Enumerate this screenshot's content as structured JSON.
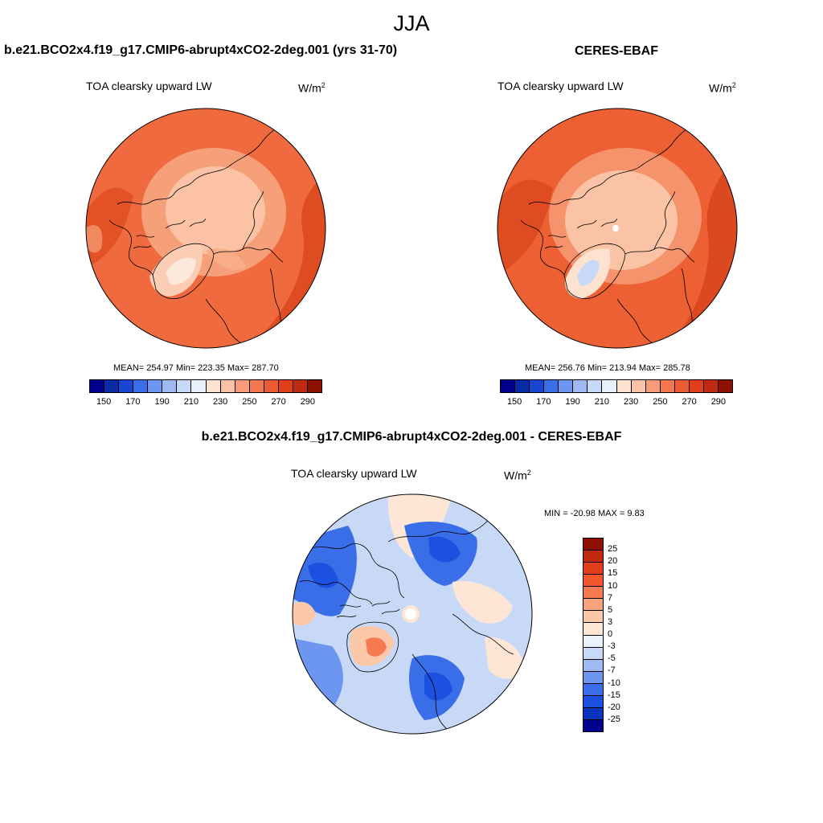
{
  "season": "JJA",
  "panels": [
    {
      "title": "b.e21.BCO2x4.f19_g17.CMIP6-abrupt4xCO2-2deg.001 (yrs 31-70)",
      "variable": "TOA clearsky upward LW",
      "units_base": "W/m",
      "units_exp": "2",
      "stats": "MEAN= 254.97  Min= 223.35  Max= 287.70",
      "colorbar": {
        "colors": [
          "#00008c",
          "#0a2ba8",
          "#1846d0",
          "#3a6ee8",
          "#6d96f0",
          "#9fbaf3",
          "#c8d9f7",
          "#e8f0fb",
          "#fde2d0",
          "#fbc3a6",
          "#f79b7a",
          "#f3784f",
          "#ee5a32",
          "#e13f1c",
          "#bf2a10",
          "#8d1002"
        ],
        "tick_labels": [
          "150",
          "170",
          "190",
          "210",
          "230",
          "250",
          "270",
          "290"
        ]
      }
    },
    {
      "title": "CERES-EBAF",
      "variable": "TOA clearsky upward LW",
      "units_base": "W/m",
      "units_exp": "2",
      "stats": "MEAN= 256.76  Min= 213.94  Max= 285.78",
      "colorbar": {
        "colors": [
          "#00008c",
          "#0a2ba8",
          "#1846d0",
          "#3a6ee8",
          "#6d96f0",
          "#9fbaf3",
          "#c8d9f7",
          "#e8f0fb",
          "#fde2d0",
          "#fbc3a6",
          "#f79b7a",
          "#f3784f",
          "#ee5a32",
          "#e13f1c",
          "#bf2a10",
          "#8d1002"
        ],
        "tick_labels": [
          "150",
          "170",
          "190",
          "210",
          "230",
          "250",
          "270",
          "290"
        ]
      }
    },
    {
      "title": "b.e21.BCO2x4.f19_g17.CMIP6-abrupt4xCO2-2deg.001 - CERES-EBAF",
      "variable": "TOA clearsky upward LW",
      "units_base": "W/m",
      "units_exp": "2",
      "stats": "MIN = -20.98 MAX =   9.83",
      "colorbar": {
        "colors": [
          "#8d1002",
          "#bf2a10",
          "#e13f1c",
          "#f3572c",
          "#f57a52",
          "#f8a27e",
          "#fbc8aa",
          "#fde6d6",
          "#eaf2fb",
          "#c8d9f7",
          "#9fbaf3",
          "#6d96f0",
          "#3a6ee8",
          "#1c50e0",
          "#0a33c0",
          "#00008c"
        ],
        "tick_labels": [
          "25",
          "20",
          "15",
          "10",
          "7",
          "5",
          "3",
          "0",
          "-3",
          "-5",
          "-7",
          "-10",
          "-15",
          "-20",
          "-25"
        ]
      }
    }
  ],
  "chart_data": [
    {
      "type": "heatmap",
      "projection": "north polar stereographic",
      "title": "b.e21.BCO2x4.f19_g17.CMIP6-abrupt4xCO2-2deg.001 (yrs 31-70)",
      "variable": "TOA clearsky upward LW",
      "units": "W/m2",
      "mean": 254.97,
      "min": 223.35,
      "max": 287.7,
      "contour_levels": [
        150,
        160,
        170,
        180,
        190,
        200,
        210,
        220,
        230,
        240,
        250,
        260,
        270,
        280,
        290
      ]
    },
    {
      "type": "heatmap",
      "projection": "north polar stereographic",
      "title": "CERES-EBAF",
      "variable": "TOA clearsky upward LW",
      "units": "W/m2",
      "mean": 256.76,
      "min": 213.94,
      "max": 285.78,
      "contour_levels": [
        150,
        160,
        170,
        180,
        190,
        200,
        210,
        220,
        230,
        240,
        250,
        260,
        270,
        280,
        290
      ]
    },
    {
      "type": "heatmap",
      "projection": "north polar stereographic",
      "title": "b.e21.BCO2x4.f19_g17.CMIP6-abrupt4xCO2-2deg.001 - CERES-EBAF",
      "variable": "TOA clearsky upward LW",
      "units": "W/m2",
      "min": -20.98,
      "max": 9.83,
      "contour_levels": [
        -25,
        -20,
        -15,
        -10,
        -7,
        -5,
        -3,
        0,
        3,
        5,
        7,
        10,
        15,
        20,
        25
      ]
    }
  ]
}
